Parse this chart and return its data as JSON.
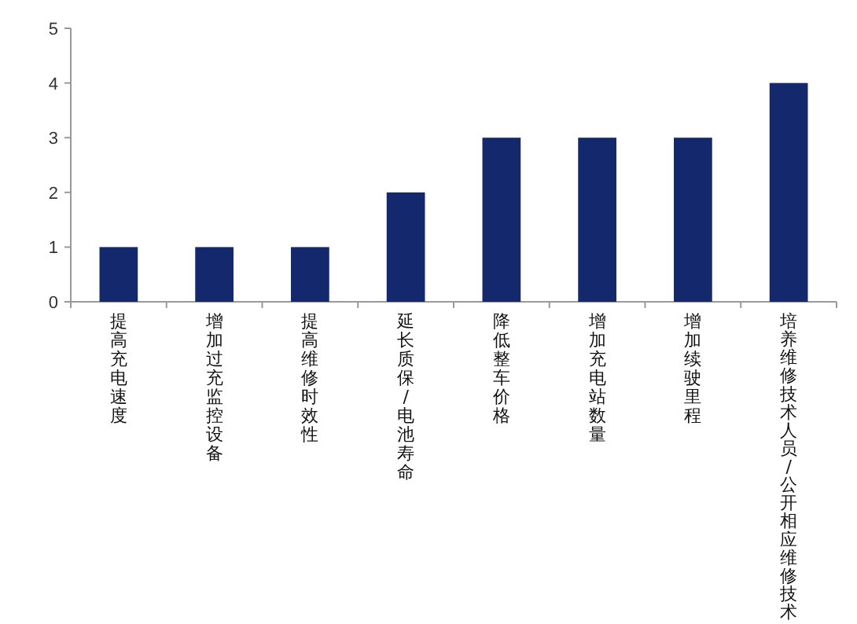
{
  "chart_data": {
    "type": "bar",
    "categories": [
      "提高充电速度",
      "增加过充监控设备",
      "提高维修时效性",
      "延长质保/电池寿命",
      "降低整车价格",
      "增加充电站数量",
      "增加续驶里程",
      "培养维修技术人员/公开相应维修技术"
    ],
    "values": [
      1,
      1,
      1,
      2,
      3,
      3,
      3,
      4
    ],
    "color": "#14286e",
    "ylim": [
      0,
      5
    ],
    "yticks": [
      0,
      1,
      2,
      3,
      4,
      5
    ],
    "grid": false
  }
}
